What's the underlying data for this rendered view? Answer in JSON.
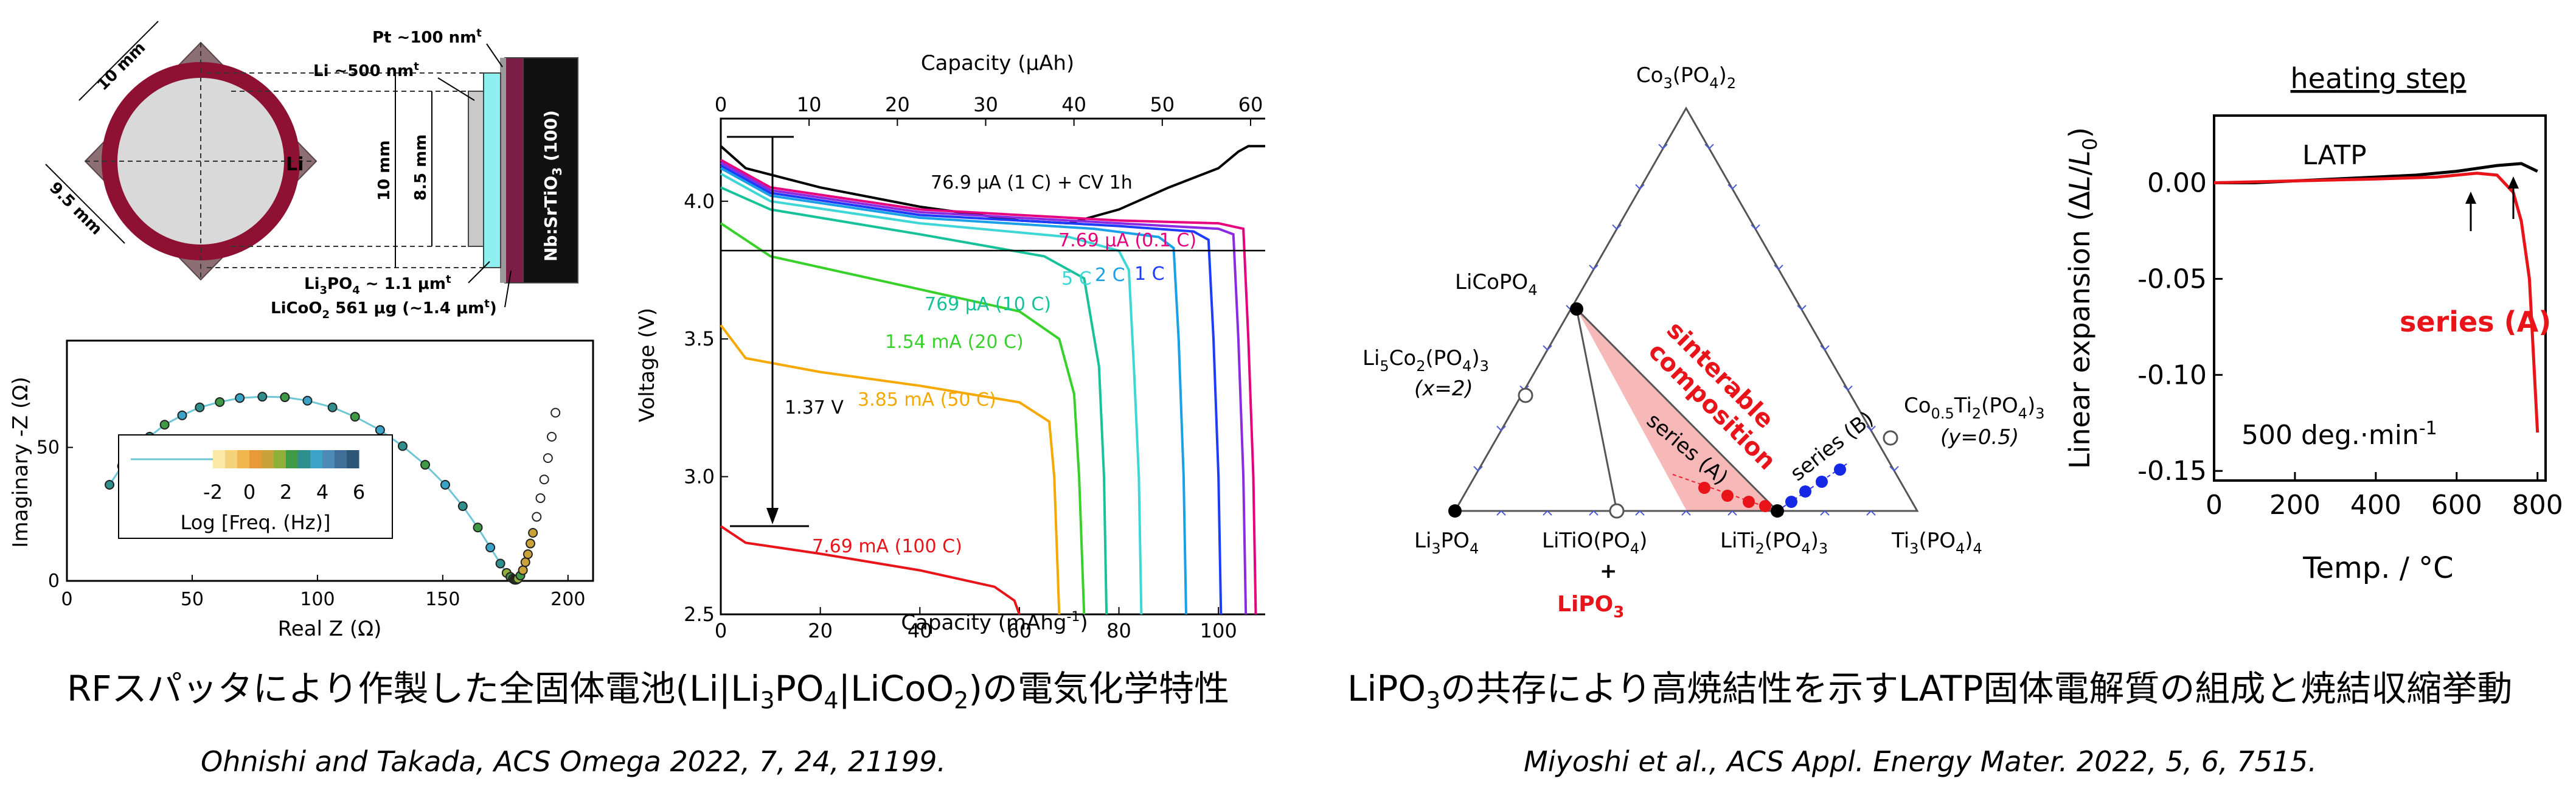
{
  "left_caption": {
    "prefix": "RFスパッタにより作製した全固体電池(Li|Li",
    "sub1": "3",
    "mid1": "PO",
    "sub2": "4",
    "mid2": "|LiCoO",
    "sub3": "2",
    "suffix": ")の電気化学特性"
  },
  "left_cite": "Ohnishi and Takada, ACS Omega 2022, 7, 24, 21199.",
  "right_caption": {
    "prefix": "LiPO",
    "sub1": "3",
    "suffix": "の共存により高焼結性を示すLATP固体電解質の組成と焼結収縮挙動"
  },
  "right_cite": "Miyoshi et al., ACS Appl. Energy Mater. 2022, 5, 6, 7515.",
  "cell_schematic": {
    "dim_10mm_top": "10 mm",
    "dim_9_5mm": "9.5 mm",
    "dim_10mm_side": "10 mm",
    "dim_8_5mm": "8.5 mm",
    "li_label": "Li",
    "pt_label": "Pt ~100 nm",
    "pt_sup": "t",
    "li_layer_label": "Li ~500 nm",
    "li_layer_sup": "t",
    "li3po4_label_a": "Li",
    "li3po4_label_b": "3",
    "li3po4_label_c": "PO",
    "li3po4_label_d": "4",
    "li3po4_label_e": " ~ 1.1 μm",
    "li3po4_sup": "t",
    "licoo2_label_a": "LiCoO",
    "licoo2_label_b": "2",
    "licoo2_label_c": " 561 μg (~1.4 μm",
    "licoo2_sup": "t",
    "licoo2_label_d": ")",
    "substrate_label": "Nb:SrTiO",
    "substrate_sub": "3",
    "substrate_suffix": " (100)"
  },
  "nyquist": {
    "ylabel": "Imaginary -Z (Ω)",
    "xlabel": "Real Z (Ω)",
    "legend_title": "Log [Freq. (Hz)]",
    "legend_ticks": [
      "-2",
      "0",
      "2",
      "4",
      "6"
    ],
    "colorbar": [
      "#fce9a8",
      "#f6d27a",
      "#f1b64f",
      "#e89a3a",
      "#c9a33a",
      "#8fae3a",
      "#3f9a46",
      "#2f8f8c",
      "#3aa3c7",
      "#4d8bb7",
      "#3f6f99",
      "#2d5677"
    ]
  },
  "rate_chart": {
    "top_label": "Capacity (μAh)",
    "ylabel": "Voltage (V)",
    "xlabel": "Capacity (mAhg",
    "xlabel_sup": "-1",
    "xlabel_end": ")",
    "curve_labels": [
      "76.9 μA (1 C) + CV 1h",
      "7.69 μA (0.1 C)",
      "5 C",
      "2 C",
      "1 C",
      "769 μA (10 C)",
      "1.54 mA (20 C)",
      "3.85 mA (50 C)",
      "7.69 mA (100 C)",
      "1.37 V"
    ]
  },
  "ternary": {
    "apex_top_a": "Co",
    "apex_top_b": "3",
    "apex_top_c": "(PO",
    "apex_top_d": "4",
    "apex_top_e": ")",
    "apex_top_f": "2",
    "licopo4_a": "LiCoPO",
    "licopo4_b": "4",
    "li5co2_a": "Li",
    "li5co2_b": "5",
    "li5co2_c": "Co",
    "li5co2_d": "2",
    "li5co2_e": "(PO",
    "li5co2_f": "4",
    "li5co2_g": ")",
    "li5co2_h": "3",
    "li5co2_x": "(x=2)",
    "co05_a": "Co",
    "co05_b": "0.5",
    "co05_c": "Ti",
    "co05_d": "2",
    "co05_e": "(PO",
    "co05_f": "4",
    "co05_g": ")",
    "co05_h": "3",
    "co05_y": "(y=0.5)",
    "li3po4_a": "Li",
    "li3po4_b": "3",
    "li3po4_c": "PO",
    "li3po4_d": "4",
    "litio_label": "LiTiO(PO",
    "litio_sub": "4",
    "litio_end": ")",
    "plus": "+",
    "lipo3_a": "LiPO",
    "lipo3_b": "3",
    "liti2_a": "LiTi",
    "liti2_b": "2",
    "liti2_c": "(PO",
    "liti2_d": "4",
    "liti2_e": ")",
    "liti2_f": "3",
    "ti3_a": "Ti",
    "ti3_b": "3",
    "ti3_c": "(PO",
    "ti3_d": "4",
    "ti3_e": ")",
    "ti3_f": "4",
    "sinterable_1": "sinterable",
    "sinterable_2": "composition",
    "series_a": "series (A)",
    "series_b": "series (B)"
  },
  "dilatometry": {
    "title": "heating step",
    "ylabel_a": "Linear expansion  (Δ",
    "ylabel_b": "L",
    "ylabel_c": "/",
    "ylabel_d": "L",
    "ylabel_e": "0",
    "ylabel_f": ")",
    "xlabel": "Temp. / °C",
    "latp_label": "LATP",
    "series_label": "series (A)",
    "rate_label": "500 deg.·min",
    "rate_sup": "-1",
    "yticks": [
      "0.00",
      "-0.05",
      "-0.10",
      "-0.15"
    ],
    "xticks": [
      "0",
      "200",
      "400",
      "600",
      "800"
    ]
  },
  "chart_data": [
    {
      "type": "scatter",
      "title": "",
      "xlabel": "Real Z (Ω)",
      "ylabel": "Imaginary -Z (Ω)",
      "xlim": [
        0,
        210
      ],
      "ylim": [
        0,
        90
      ],
      "xticks": [
        "0",
        "50",
        "100",
        "150",
        "200"
      ],
      "yticks": [
        "0",
        "50"
      ],
      "x": [
        17,
        22,
        27,
        33,
        39,
        46,
        53,
        61,
        69,
        78,
        87,
        96,
        106,
        115,
        125,
        134,
        143,
        151,
        158,
        164,
        169,
        173,
        175.5,
        177,
        178,
        178.5,
        179,
        179.5,
        180,
        181,
        182,
        183,
        184,
        185,
        186,
        187.5,
        189,
        190.5,
        192,
        193.5,
        195
      ],
      "y": [
        36,
        43,
        49,
        54,
        58.5,
        62,
        65,
        67,
        68.5,
        69,
        68.8,
        67.5,
        65,
        61.5,
        56.5,
        50.5,
        43.5,
        36,
        28,
        20,
        12.5,
        6.5,
        3,
        1.5,
        0.8,
        0.5,
        0.4,
        0.5,
        0.8,
        2,
        4,
        7,
        10,
        14,
        18,
        24,
        31,
        38,
        46,
        54,
        63
      ]
    },
    {
      "type": "line",
      "title": "",
      "xlabel": "Capacity (mAhg-1)",
      "ylabel": "Voltage (V)",
      "x2label": "Capacity (μAh)",
      "xlim": [
        0,
        110
      ],
      "ylim": [
        2.5,
        4.3
      ],
      "x2lim": [
        0,
        62
      ],
      "xticks": [
        "0",
        "20",
        "40",
        "60",
        "80",
        "100"
      ],
      "yticks": [
        "2.5",
        "3.0",
        "3.5",
        "4.0"
      ],
      "x2ticks": [
        "0",
        "10",
        "20",
        "30",
        "40",
        "50",
        "60"
      ],
      "series": [
        {
          "name": "76.9 μA (1 C) + CV 1h",
          "color": "#000000",
          "x": [
            0,
            5,
            20,
            40,
            60,
            70,
            80,
            90,
            100,
            104,
            106,
            110
          ],
          "y": [
            4.2,
            4.12,
            4.05,
            3.98,
            3.93,
            3.92,
            3.97,
            4.05,
            4.12,
            4.18,
            4.2,
            4.2
          ]
        },
        {
          "name": "7.69 μA (0.1 C)",
          "color": "#e6007e",
          "x": [
            0,
            10,
            40,
            80,
            100,
            105,
            106,
            107,
            107.5
          ],
          "y": [
            4.15,
            4.05,
            3.97,
            3.93,
            3.92,
            3.9,
            3.5,
            3.0,
            2.5
          ]
        },
        {
          "name": "",
          "color": "#8a2be2",
          "x": [
            0,
            10,
            40,
            80,
            100,
            103,
            104,
            105,
            105.5
          ],
          "y": [
            4.14,
            4.04,
            3.96,
            3.92,
            3.9,
            3.88,
            3.5,
            3.0,
            2.5
          ]
        },
        {
          "name": "1 C",
          "color": "#1e3cff",
          "x": [
            0,
            10,
            40,
            80,
            95,
            98,
            99,
            100,
            100.5
          ],
          "y": [
            4.13,
            4.03,
            3.95,
            3.91,
            3.89,
            3.86,
            3.5,
            3.0,
            2.5
          ]
        },
        {
          "name": "2 C",
          "color": "#1aa0e6",
          "x": [
            0,
            10,
            40,
            75,
            88,
            91,
            92,
            93,
            93.5
          ],
          "y": [
            4.12,
            4.02,
            3.94,
            3.9,
            3.87,
            3.83,
            3.5,
            3.0,
            2.5
          ]
        },
        {
          "name": "5 C",
          "color": "#3fd6d6",
          "x": [
            0,
            10,
            40,
            70,
            80,
            82,
            83,
            84,
            84.5
          ],
          "y": [
            4.1,
            4.0,
            3.92,
            3.87,
            3.82,
            3.75,
            3.4,
            3.0,
            2.5
          ]
        },
        {
          "name": "769 μA (10 C)",
          "color": "#17c29a",
          "x": [
            0,
            10,
            40,
            65,
            73,
            76,
            77,
            77.5
          ],
          "y": [
            4.05,
            3.97,
            3.88,
            3.8,
            3.72,
            3.4,
            3.0,
            2.5
          ]
        },
        {
          "name": "1.54 mA (20 C)",
          "color": "#37d12a",
          "x": [
            0,
            10,
            40,
            60,
            68,
            71,
            72,
            73
          ],
          "y": [
            3.92,
            3.8,
            3.68,
            3.6,
            3.5,
            3.3,
            3.0,
            2.5
          ]
        },
        {
          "name": "3.85 mA (50 C)",
          "color": "#f5a800",
          "x": [
            0,
            5,
            20,
            40,
            60,
            66,
            67,
            68
          ],
          "y": [
            3.55,
            3.43,
            3.38,
            3.33,
            3.27,
            3.2,
            3.0,
            2.5
          ]
        },
        {
          "name": "7.69 mA (100 C)",
          "color": "#e8141a",
          "x": [
            0,
            5,
            20,
            40,
            55,
            59,
            60
          ],
          "y": [
            2.82,
            2.76,
            2.72,
            2.66,
            2.6,
            2.55,
            2.5
          ]
        }
      ]
    },
    {
      "type": "line",
      "title": "heating step",
      "xlabel": "Temp. / °C",
      "ylabel": "Linear expansion (ΔL/L0)",
      "xlim": [
        0,
        820
      ],
      "ylim": [
        -0.155,
        0.035
      ],
      "xticks": [
        "0",
        "200",
        "400",
        "600",
        "800"
      ],
      "yticks": [
        "0.00",
        "-0.05",
        "-0.10",
        "-0.15"
      ],
      "series": [
        {
          "name": "LATP",
          "color": "#000000",
          "x": [
            0,
            100,
            200,
            300,
            400,
            500,
            600,
            700,
            760,
            800
          ],
          "y": [
            0.0,
            0.0,
            0.001,
            0.002,
            0.003,
            0.004,
            0.006,
            0.009,
            0.01,
            0.006
          ]
        },
        {
          "name": "series (A)",
          "color": "#e8141a",
          "x": [
            0,
            200,
            400,
            550,
            650,
            700,
            740,
            760,
            780,
            790,
            800
          ],
          "y": [
            0.0,
            0.001,
            0.002,
            0.003,
            0.005,
            0.004,
            -0.005,
            -0.02,
            -0.05,
            -0.09,
            -0.13
          ]
        }
      ]
    }
  ]
}
